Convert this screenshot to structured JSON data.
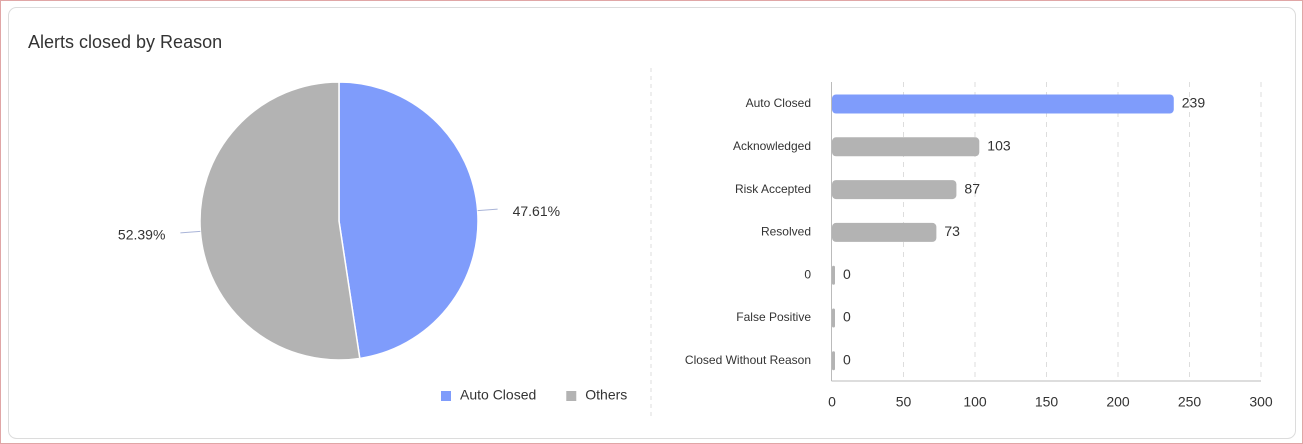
{
  "title": "Alerts closed by Reason",
  "chart_data": [
    {
      "type": "pie",
      "categories": [
        "Auto Closed",
        "Others"
      ],
      "values": [
        47.61,
        52.39
      ],
      "value_labels": [
        "47.61%",
        "52.39%"
      ],
      "colors": [
        "#7f9cfb",
        "#b3b3b3"
      ],
      "legend": "bottom"
    },
    {
      "type": "hbar",
      "categories": [
        "Auto Closed",
        "Acknowledged",
        "Risk Accepted",
        "Resolved",
        "0",
        "False Positive",
        "Closed Without Reason"
      ],
      "values": [
        239,
        103,
        87,
        73,
        0,
        0,
        0
      ],
      "colors": [
        "#7f9cfb",
        "#b3b3b3",
        "#b3b3b3",
        "#b3b3b3",
        "#b3b3b3",
        "#b3b3b3",
        "#b3b3b3"
      ],
      "xlim": [
        0,
        300
      ],
      "xticks": [
        0,
        50,
        100,
        150,
        200,
        250,
        300
      ],
      "grid": true
    }
  ]
}
